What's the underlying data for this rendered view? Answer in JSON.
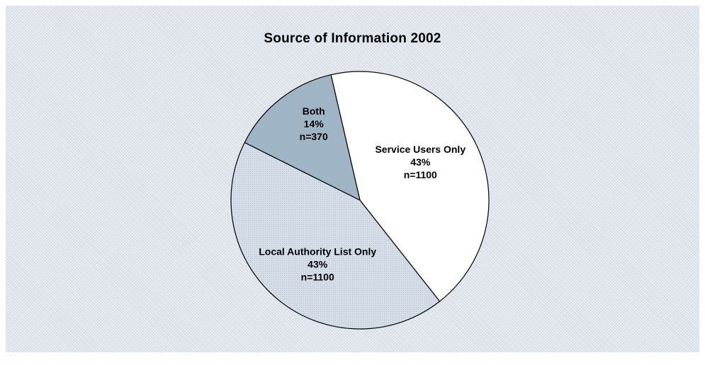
{
  "chart_data": {
    "type": "pie",
    "title": "Source of Information 2002",
    "start_angle_deg": -13,
    "slices": [
      {
        "name": "Service Users Only",
        "percent_label": "43%",
        "n_label": "n=1100",
        "value": 43,
        "color": "#ffffff"
      },
      {
        "name": "Local Authority List Only",
        "percent_label": "43%",
        "n_label": "n=1100",
        "value": 43,
        "color": "#d4dde8"
      },
      {
        "name": "Both",
        "percent_label": "14%",
        "n_label": "n=370",
        "value": 14,
        "color": "#9fb5c6"
      }
    ]
  }
}
